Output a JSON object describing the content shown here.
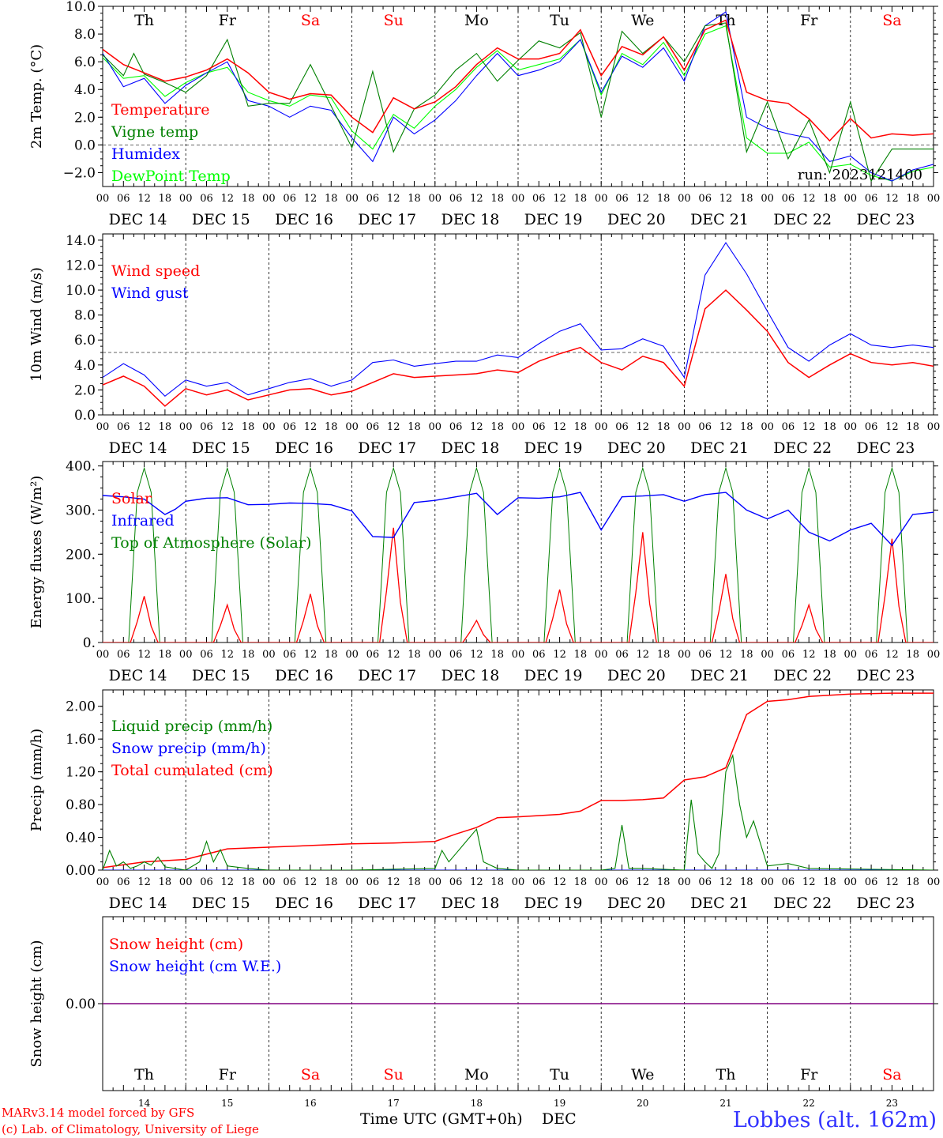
{
  "days": {
    "weekdays": [
      "Th",
      "Fr",
      "Sa",
      "Su",
      "Mo",
      "Tu",
      "We",
      "Th",
      "Fr",
      "Sa"
    ],
    "weekend_flags": [
      false,
      false,
      true,
      true,
      false,
      false,
      false,
      false,
      false,
      true
    ],
    "dates": [
      "DEC 14",
      "DEC 15",
      "DEC 16",
      "DEC 17",
      "DEC 18",
      "DEC 19",
      "DEC 20",
      "DEC 21",
      "DEC 22",
      "DEC 23"
    ],
    "hour_ticks": [
      "00",
      "06",
      "12",
      "18"
    ],
    "final_hour": "00",
    "day_numbers": [
      "14",
      "15",
      "16",
      "17",
      "18",
      "19",
      "20",
      "21",
      "22",
      "23"
    ]
  },
  "colors": {
    "red": "#ff0000",
    "dark_green": "#008000",
    "blue": "#0000ff",
    "light_green": "#00ff00",
    "weekend": "#ff0000",
    "purple": "#800080"
  },
  "footer": {
    "credit_line1": "MARv3.14 model forced by GFS",
    "credit_line2": "(c) Lab. of Climatology, University of Liege",
    "axis_label": "Time UTC (GMT+0h)",
    "month": "DEC",
    "station": "Lobbes (alt. 162m)"
  },
  "chart_data": [
    {
      "type": "line",
      "ylabel": "2m Temp. (°C)",
      "ylim": [
        -3,
        10
      ],
      "yticks": [
        -2,
        0,
        2,
        4,
        6,
        8,
        10
      ],
      "ytick_labels": [
        "−2.0",
        "0.0",
        "2.0",
        "4.0",
        "6.0",
        "8.0",
        "10.0"
      ],
      "reference_line": 0,
      "annotation": "run: 2023121400",
      "x_unit": "hours since DEC 14 00 UTC",
      "legend": [
        "Temperature",
        "Vigne temp",
        "Humidex",
        "DewPoint Temp"
      ],
      "series": [
        {
          "name": "Temperature",
          "color": "red",
          "x": [
            0,
            6,
            12,
            18,
            24,
            30,
            36,
            42,
            48,
            54,
            60,
            66,
            72,
            78,
            84,
            90,
            96,
            102,
            108,
            114,
            120,
            126,
            132,
            138,
            144,
            150,
            156,
            162,
            168,
            174,
            180,
            186,
            192,
            198,
            204,
            210,
            216,
            222,
            228,
            234,
            240
          ],
          "values": [
            6.9,
            5.8,
            5.2,
            4.6,
            4.9,
            5.4,
            6.2,
            5.2,
            3.8,
            3.3,
            3.7,
            3.6,
            2.0,
            0.9,
            3.4,
            2.6,
            3.1,
            4.2,
            5.8,
            7.0,
            6.2,
            6.2,
            6.6,
            8.3,
            5.0,
            7.1,
            6.5,
            7.8,
            5.4,
            8.3,
            9.0,
            3.8,
            3.2,
            3.0,
            1.9,
            0.3,
            1.9,
            0.5,
            0.8,
            0.7,
            0.8
          ]
        },
        {
          "name": "Vigne temp",
          "color": "dark_green",
          "x": [
            0,
            6,
            9,
            12,
            18,
            24,
            30,
            36,
            42,
            48,
            54,
            60,
            66,
            72,
            78,
            84,
            90,
            96,
            102,
            108,
            114,
            120,
            126,
            132,
            138,
            144,
            150,
            156,
            162,
            168,
            174,
            180,
            186,
            192,
            198,
            204,
            210,
            216,
            222,
            228,
            240
          ],
          "values": [
            6.5,
            5.0,
            6.6,
            5.1,
            4.5,
            3.8,
            5.0,
            7.6,
            2.8,
            3.0,
            3.0,
            5.8,
            2.8,
            -0.2,
            5.3,
            -0.5,
            2.6,
            3.6,
            5.4,
            6.6,
            4.6,
            6.1,
            7.5,
            7.0,
            8.1,
            2.0,
            8.2,
            6.6,
            7.8,
            6.0,
            8.6,
            8.8,
            -0.5,
            3.1,
            -1.0,
            1.8,
            -2.0,
            3.1,
            -2.6,
            -0.3,
            -0.3
          ]
        },
        {
          "name": "Humidex",
          "color": "blue",
          "x": [
            0,
            6,
            12,
            18,
            24,
            30,
            36,
            42,
            48,
            54,
            60,
            66,
            72,
            78,
            84,
            90,
            96,
            102,
            108,
            114,
            120,
            126,
            132,
            138,
            144,
            150,
            156,
            162,
            168,
            174,
            180,
            186,
            192,
            198,
            204,
            210,
            216,
            222,
            228,
            234,
            240
          ],
          "values": [
            6.6,
            4.2,
            4.8,
            3.0,
            4.3,
            5.2,
            6.0,
            3.2,
            2.8,
            2.0,
            2.8,
            2.5,
            0.5,
            -1.2,
            2.0,
            0.8,
            1.8,
            3.2,
            5.0,
            6.6,
            5.0,
            5.4,
            6.0,
            7.6,
            3.8,
            6.4,
            5.6,
            7.0,
            4.6,
            8.6,
            9.6,
            2.0,
            1.2,
            0.8,
            0.5,
            -1.2,
            -0.8,
            -2.0,
            -2.6,
            -1.8,
            -1.4
          ]
        },
        {
          "name": "DewPoint Temp",
          "color": "light_green",
          "x": [
            0,
            6,
            12,
            18,
            24,
            30,
            36,
            42,
            48,
            54,
            60,
            66,
            72,
            78,
            84,
            90,
            96,
            102,
            108,
            114,
            120,
            126,
            132,
            138,
            144,
            150,
            156,
            162,
            168,
            174,
            180,
            186,
            192,
            198,
            204,
            210,
            216,
            222,
            228,
            234,
            240
          ],
          "values": [
            6.3,
            4.8,
            5.0,
            3.5,
            4.5,
            5.2,
            5.6,
            3.8,
            3.2,
            2.8,
            3.6,
            3.4,
            1.0,
            -0.3,
            2.2,
            1.2,
            2.8,
            4.0,
            5.6,
            6.8,
            5.4,
            5.8,
            6.2,
            7.6,
            3.6,
            6.6,
            5.8,
            7.4,
            5.0,
            8.0,
            8.6,
            0.5,
            -0.6,
            -0.6,
            0.2,
            -1.6,
            -1.4,
            -2.2,
            -2.6,
            -1.9,
            -1.6
          ]
        }
      ]
    },
    {
      "type": "line",
      "ylabel": "10m Wind (m/s)",
      "ylim": [
        0,
        14
      ],
      "yticks": [
        0,
        2,
        4,
        6,
        8,
        10,
        12,
        14
      ],
      "ytick_labels": [
        "0.0",
        "2.0",
        "4.0",
        "6.0",
        "8.0",
        "10.0",
        "12.0",
        "14.0"
      ],
      "reference_line": 5,
      "legend": [
        "Wind speed",
        "Wind gust"
      ],
      "series": [
        {
          "name": "Wind speed",
          "color": "red",
          "x": [
            0,
            6,
            12,
            18,
            24,
            30,
            36,
            42,
            48,
            54,
            60,
            66,
            72,
            78,
            84,
            90,
            96,
            102,
            108,
            114,
            120,
            126,
            132,
            138,
            144,
            150,
            156,
            162,
            168,
            174,
            180,
            186,
            192,
            198,
            204,
            210,
            216,
            222,
            228,
            234,
            240
          ],
          "values": [
            2.4,
            3.1,
            2.3,
            0.7,
            2.1,
            1.6,
            2.0,
            1.2,
            1.6,
            2.0,
            2.1,
            1.6,
            1.9,
            2.6,
            3.3,
            3.0,
            3.1,
            3.2,
            3.3,
            3.6,
            3.4,
            4.3,
            4.9,
            5.4,
            4.2,
            3.6,
            4.7,
            4.2,
            2.3,
            8.5,
            10.0,
            8.4,
            6.7,
            4.2,
            3.0,
            4.0,
            4.9,
            4.2,
            4.0,
            4.2,
            3.9
          ]
        },
        {
          "name": "Wind gust",
          "color": "blue",
          "x": [
            0,
            6,
            12,
            18,
            24,
            30,
            36,
            42,
            48,
            54,
            60,
            66,
            72,
            78,
            84,
            90,
            96,
            102,
            108,
            114,
            120,
            126,
            132,
            138,
            144,
            150,
            156,
            162,
            168,
            174,
            180,
            186,
            192,
            198,
            204,
            210,
            216,
            222,
            228,
            234,
            240
          ],
          "values": [
            3.0,
            4.1,
            3.2,
            1.5,
            2.8,
            2.3,
            2.6,
            1.6,
            2.1,
            2.6,
            2.9,
            2.3,
            2.8,
            4.2,
            4.4,
            3.9,
            4.1,
            4.3,
            4.3,
            4.8,
            4.6,
            5.7,
            6.7,
            7.3,
            5.2,
            5.3,
            6.1,
            5.5,
            3.0,
            11.2,
            13.8,
            11.3,
            8.3,
            5.4,
            4.3,
            5.6,
            6.5,
            5.6,
            5.4,
            5.6,
            5.4
          ]
        }
      ]
    },
    {
      "type": "line",
      "ylabel": "Energy fluxes (W/m²)",
      "ylim": [
        0,
        410
      ],
      "yticks": [
        0,
        100,
        200,
        300,
        400
      ],
      "ytick_labels": [
        "0.",
        "100.",
        "200.",
        "300.",
        "400."
      ],
      "legend": [
        "Solar",
        "Infrared",
        "Top of Atmosphere (Solar)"
      ],
      "series": [
        {
          "name": "Solar",
          "color": "red",
          "solar_peaks": [
            105,
            85,
            110,
            260,
            50,
            120,
            250,
            155,
            85,
            235
          ]
        },
        {
          "name": "Infrared",
          "color": "blue",
          "x": [
            0,
            6,
            12,
            18,
            21,
            24,
            30,
            36,
            42,
            48,
            54,
            60,
            66,
            72,
            78,
            84,
            90,
            96,
            102,
            108,
            114,
            120,
            126,
            132,
            138,
            144,
            150,
            156,
            162,
            168,
            174,
            180,
            186,
            192,
            198,
            204,
            210,
            216,
            222,
            228,
            234,
            240
          ],
          "values": [
            333,
            330,
            325,
            290,
            302,
            320,
            327,
            328,
            312,
            313,
            316,
            315,
            312,
            298,
            240,
            238,
            317,
            322,
            330,
            338,
            290,
            328,
            327,
            330,
            340,
            255,
            330,
            332,
            335,
            320,
            335,
            340,
            300,
            280,
            300,
            250,
            230,
            255,
            270,
            220,
            290,
            295
          ]
        },
        {
          "name": "Top of Atmosphere (Solar)",
          "color": "dark_green",
          "toa_peak": 395
        }
      ]
    },
    {
      "type": "line",
      "ylabel": "Precip (mm/h)",
      "ylim": [
        0,
        2.2
      ],
      "yticks": [
        0,
        0.4,
        0.8,
        1.2,
        1.6,
        2.0
      ],
      "ytick_labels": [
        "0.00",
        "0.40",
        "0.80",
        "1.20",
        "1.60",
        "2.00"
      ],
      "legend": [
        "Liquid precip (mm/h)",
        "Snow precip (mm/h)",
        "Total cumulated (cm)"
      ],
      "series": [
        {
          "name": "Liquid precip (mm/h)",
          "color": "dark_green",
          "x": [
            0,
            2,
            4,
            6,
            8,
            10,
            12,
            14,
            16,
            18,
            24,
            28,
            30,
            32,
            34,
            36,
            42,
            48,
            72,
            96,
            98,
            100,
            102,
            104,
            108,
            110,
            114,
            120,
            144,
            148,
            150,
            152,
            156,
            168,
            170,
            172,
            174,
            176,
            178,
            180,
            182,
            184,
            186,
            188,
            192,
            198,
            204,
            240
          ],
          "values": [
            0.0,
            0.24,
            0.05,
            0.1,
            0.02,
            0.05,
            0.1,
            0.06,
            0.16,
            0.04,
            0.0,
            0.1,
            0.35,
            0.1,
            0.25,
            0.05,
            0.02,
            0.0,
            0.0,
            0.02,
            0.24,
            0.1,
            0.2,
            0.3,
            0.5,
            0.1,
            0.02,
            0.0,
            0.0,
            0.02,
            0.55,
            0.02,
            0.02,
            0.0,
            0.86,
            0.2,
            0.1,
            0.02,
            0.2,
            1.2,
            1.4,
            0.8,
            0.4,
            0.6,
            0.05,
            0.08,
            0.02,
            0.0
          ]
        },
        {
          "name": "Snow precip (mm/h)",
          "color": "blue",
          "x": [
            0,
            240
          ],
          "values": [
            0.0,
            0.0
          ]
        },
        {
          "name": "Total cumulated (cm)",
          "color": "red",
          "x": [
            0,
            12,
            24,
            36,
            48,
            60,
            72,
            84,
            96,
            102,
            108,
            114,
            120,
            132,
            138,
            144,
            150,
            156,
            162,
            168,
            174,
            180,
            186,
            192,
            198,
            204,
            216,
            228,
            240
          ],
          "values": [
            0.03,
            0.1,
            0.13,
            0.26,
            0.28,
            0.3,
            0.32,
            0.33,
            0.35,
            0.44,
            0.52,
            0.64,
            0.65,
            0.68,
            0.72,
            0.85,
            0.85,
            0.86,
            0.88,
            1.1,
            1.14,
            1.25,
            1.9,
            2.06,
            2.08,
            2.12,
            2.15,
            2.16,
            2.16
          ]
        }
      ]
    },
    {
      "type": "line",
      "ylabel": "Snow height (cm)",
      "ylim": [
        -1,
        1
      ],
      "yticks": [
        0
      ],
      "ytick_labels": [
        "0.00"
      ],
      "legend": [
        "Snow height (cm)",
        "Snow height (cm W.E.)"
      ],
      "series": [
        {
          "name": "Snow height (cm)",
          "color": "red",
          "x": [
            0,
            240
          ],
          "values": [
            0.0,
            0.0
          ]
        },
        {
          "name": "Snow height (cm W.E.)",
          "color": "blue",
          "x": [
            0,
            240
          ],
          "values": [
            0.0,
            0.0
          ]
        }
      ]
    }
  ]
}
